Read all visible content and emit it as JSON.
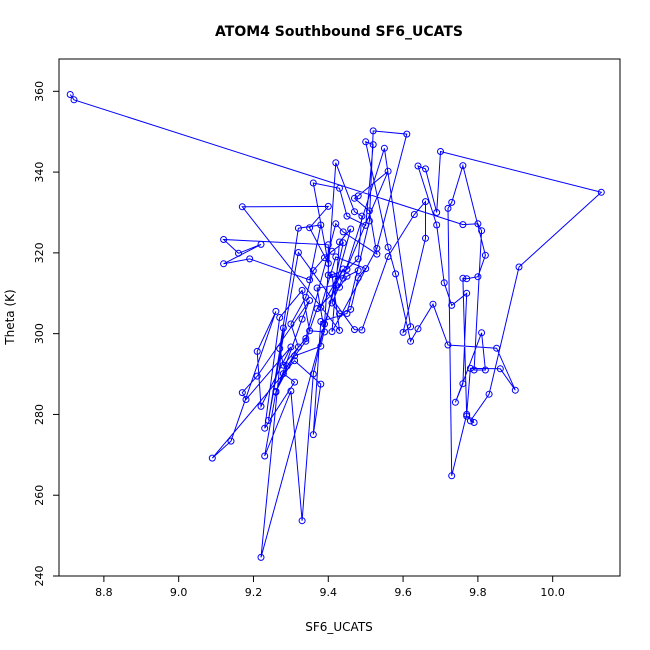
{
  "chart_data": {
    "type": "line",
    "title": "ATOM4 Southbound SF6_UCATS",
    "xlabel": "SF6_UCATS",
    "ylabel": "Theta (K)",
    "xlim": [
      8.68,
      10.18
    ],
    "ylim": [
      240,
      368
    ],
    "xticks": [
      8.8,
      9.0,
      9.2,
      9.4,
      9.6,
      9.8,
      10.0
    ],
    "xtick_labels": [
      "8.8",
      "9.0",
      "9.2",
      "9.4",
      "9.6",
      "9.8",
      "10.0"
    ],
    "yticks": [
      240,
      260,
      280,
      300,
      320,
      340,
      360
    ],
    "ytick_labels": [
      "240",
      "260",
      "280",
      "300",
      "320",
      "340",
      "360"
    ],
    "grid": false,
    "series": [
      {
        "color": "#0000ff",
        "marker": "open-circle",
        "points": [
          [
            8.71,
            359.2
          ],
          [
            8.72,
            357.9
          ],
          [
            9.76,
            327.0
          ],
          [
            9.8,
            327.2
          ],
          [
            9.81,
            325.5
          ],
          [
            9.79,
            291.0
          ],
          [
            9.82,
            291.0
          ],
          [
            9.81,
            300.2
          ],
          [
            9.74,
            283.0
          ],
          [
            9.76,
            287.6
          ],
          [
            9.77,
            310.0
          ],
          [
            9.73,
            307.0
          ],
          [
            9.71,
            312.6
          ],
          [
            9.69,
            326.9
          ],
          [
            9.64,
            341.5
          ],
          [
            9.66,
            340.8
          ],
          [
            9.69,
            330.0
          ],
          [
            9.7,
            345.1
          ],
          [
            10.13,
            335.0
          ],
          [
            9.91,
            316.5
          ],
          [
            9.83,
            285.0
          ],
          [
            9.78,
            278.4
          ],
          [
            9.79,
            278.0
          ],
          [
            9.77,
            279.6
          ],
          [
            9.76,
            313.7
          ],
          [
            9.77,
            313.6
          ],
          [
            9.8,
            314.1
          ],
          [
            9.82,
            319.4
          ],
          [
            9.76,
            341.6
          ],
          [
            9.73,
            332.5
          ],
          [
            9.72,
            331.0
          ],
          [
            9.73,
            264.8
          ],
          [
            9.77,
            280.0
          ],
          [
            9.78,
            291.4
          ],
          [
            9.86,
            291.3
          ],
          [
            9.9,
            286.0
          ],
          [
            9.85,
            296.4
          ],
          [
            9.72,
            297.2
          ],
          [
            9.68,
            307.3
          ],
          [
            9.64,
            301.2
          ],
          [
            9.62,
            298.1
          ],
          [
            9.58,
            314.8
          ],
          [
            9.56,
            321.4
          ],
          [
            9.5,
            347.5
          ],
          [
            9.52,
            346.8
          ],
          [
            9.5,
            326.8
          ],
          [
            9.45,
            329.1
          ],
          [
            9.43,
            336.0
          ],
          [
            9.36,
            337.3
          ],
          [
            9.4,
            317.4
          ],
          [
            9.35,
            326.2
          ],
          [
            9.4,
            331.5
          ],
          [
            9.17,
            331.4
          ],
          [
            9.43,
            300.8
          ],
          [
            9.41,
            314.6
          ],
          [
            9.45,
            315.9
          ],
          [
            9.48,
            318.5
          ],
          [
            9.49,
            329.1
          ],
          [
            9.47,
            330.2
          ],
          [
            9.42,
            342.3
          ],
          [
            9.39,
            302.4
          ],
          [
            9.36,
            290.0
          ],
          [
            9.33,
            253.7
          ],
          [
            9.3,
            285.8
          ],
          [
            9.23,
            269.7
          ],
          [
            9.26,
            285.5
          ],
          [
            9.33,
            303.6
          ],
          [
            9.35,
            308.2
          ],
          [
            9.21,
            289.5
          ],
          [
            9.17,
            285.4
          ],
          [
            9.18,
            283.7
          ],
          [
            9.3,
            296.7
          ],
          [
            9.22,
            282.0
          ],
          [
            9.21,
            295.6
          ],
          [
            9.26,
            305.5
          ],
          [
            9.14,
            273.4
          ],
          [
            9.09,
            269.2
          ],
          [
            9.31,
            293.3
          ],
          [
            9.38,
            287.5
          ],
          [
            9.36,
            275.0
          ],
          [
            9.38,
            303.0
          ],
          [
            9.45,
            305.0
          ],
          [
            9.51,
            327.9
          ],
          [
            9.52,
            350.2
          ],
          [
            9.61,
            349.4
          ],
          [
            9.53,
            321.1
          ],
          [
            9.41,
            300.5
          ],
          [
            9.43,
            322.7
          ],
          [
            9.46,
            325.9
          ],
          [
            9.22,
            244.6
          ],
          [
            9.28,
            301.4
          ],
          [
            9.24,
            278.5
          ],
          [
            9.32,
            320.1
          ],
          [
            9.47,
            301.0
          ],
          [
            9.49,
            300.9
          ],
          [
            9.56,
            319.1
          ],
          [
            9.63,
            329.5
          ],
          [
            9.66,
            332.7
          ],
          [
            9.66,
            323.6
          ],
          [
            9.6,
            300.3
          ],
          [
            9.62,
            301.7
          ],
          [
            9.55,
            345.9
          ],
          [
            9.44,
            313.7
          ],
          [
            9.4,
            314.5
          ],
          [
            9.4,
            322.0
          ],
          [
            9.12,
            323.3
          ],
          [
            9.16,
            319.9
          ],
          [
            9.22,
            322.1
          ],
          [
            9.12,
            317.3
          ],
          [
            9.19,
            318.5
          ],
          [
            9.35,
            313.3
          ],
          [
            9.38,
            326.9
          ],
          [
            9.32,
            326.1
          ],
          [
            9.27,
            296.3
          ],
          [
            9.28,
            292.2
          ],
          [
            9.34,
            298.8
          ],
          [
            9.42,
            327.2
          ],
          [
            9.44,
            325.2
          ],
          [
            9.53,
            319.7
          ],
          [
            9.51,
            330.4
          ],
          [
            9.47,
            333.5
          ],
          [
            9.48,
            334.1
          ],
          [
            9.56,
            340.2
          ],
          [
            9.41,
            307.6
          ],
          [
            9.43,
            304.9
          ],
          [
            9.46,
            306.0
          ],
          [
            9.48,
            313.8
          ],
          [
            9.5,
            316.1
          ],
          [
            9.42,
            319.0
          ],
          [
            9.38,
            306.5
          ],
          [
            9.44,
            316.0
          ],
          [
            9.42,
            312.0
          ],
          [
            9.37,
            311.3
          ],
          [
            9.39,
            300.4
          ],
          [
            9.35,
            300.7
          ],
          [
            9.33,
            310.7
          ],
          [
            9.27,
            304.0
          ],
          [
            9.23,
            276.6
          ],
          [
            9.31,
            288.0
          ],
          [
            9.28,
            290.1
          ],
          [
            9.32,
            296.7
          ],
          [
            9.3,
            302.4
          ],
          [
            9.34,
            309.0
          ],
          [
            9.36,
            315.6
          ],
          [
            9.39,
            318.8
          ],
          [
            9.41,
            320.4
          ],
          [
            9.44,
            322.5
          ],
          [
            9.38,
            296.9
          ],
          [
            9.31,
            294.5
          ],
          [
            9.26,
            285.7
          ],
          [
            9.29,
            292.0
          ],
          [
            9.34,
            298.1
          ],
          [
            9.37,
            306.2
          ],
          [
            9.43,
            311.5
          ],
          [
            9.45,
            314.2
          ],
          [
            9.48,
            315.6
          ]
        ]
      }
    ]
  }
}
